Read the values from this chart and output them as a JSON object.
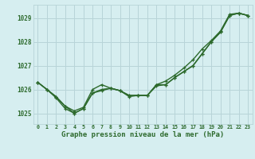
{
  "xlabel": "Graphe pression niveau de la mer (hPa)",
  "hours": [
    0,
    1,
    2,
    3,
    4,
    5,
    6,
    7,
    8,
    9,
    10,
    11,
    12,
    13,
    14,
    15,
    16,
    17,
    18,
    19,
    20,
    21,
    22,
    23
  ],
  "line1": [
    1026.3,
    1026.0,
    1025.7,
    1025.3,
    1025.0,
    1025.2,
    1025.85,
    1026.0,
    1026.05,
    1025.95,
    1025.7,
    1025.75,
    1025.75,
    1026.2,
    1026.2,
    1026.5,
    1026.75,
    1027.0,
    1027.5,
    1028.0,
    1028.4,
    1029.1,
    1029.2,
    1029.1
  ],
  "line2": [
    1026.3,
    1026.0,
    1025.7,
    1025.3,
    1025.1,
    1025.25,
    1026.0,
    1026.2,
    1026.05,
    1025.95,
    1025.75,
    1025.75,
    1025.75,
    1026.2,
    1026.35,
    1026.6,
    1026.9,
    1027.25,
    1027.7,
    1028.05,
    1028.45,
    1029.15,
    1029.2,
    1029.1
  ],
  "line3": [
    1026.3,
    1026.0,
    1025.65,
    1025.2,
    1025.0,
    1025.2,
    1025.85,
    1025.95,
    1026.05,
    1025.95,
    1025.75,
    1025.75,
    1025.75,
    1026.15,
    1026.2,
    1026.5,
    1026.75,
    1027.0,
    1027.5,
    1028.0,
    1028.4,
    1029.1,
    1029.2,
    1029.1
  ],
  "bg_color": "#d6eef0",
  "grid_color": "#b8d4d8",
  "line_color": "#2d6a2d",
  "marker": "+",
  "ylim": [
    1024.55,
    1029.55
  ],
  "yticks": [
    1025,
    1026,
    1027,
    1028,
    1029
  ],
  "xlim": [
    -0.5,
    23.5
  ],
  "marker_size": 3.5,
  "line_width": 1.0
}
